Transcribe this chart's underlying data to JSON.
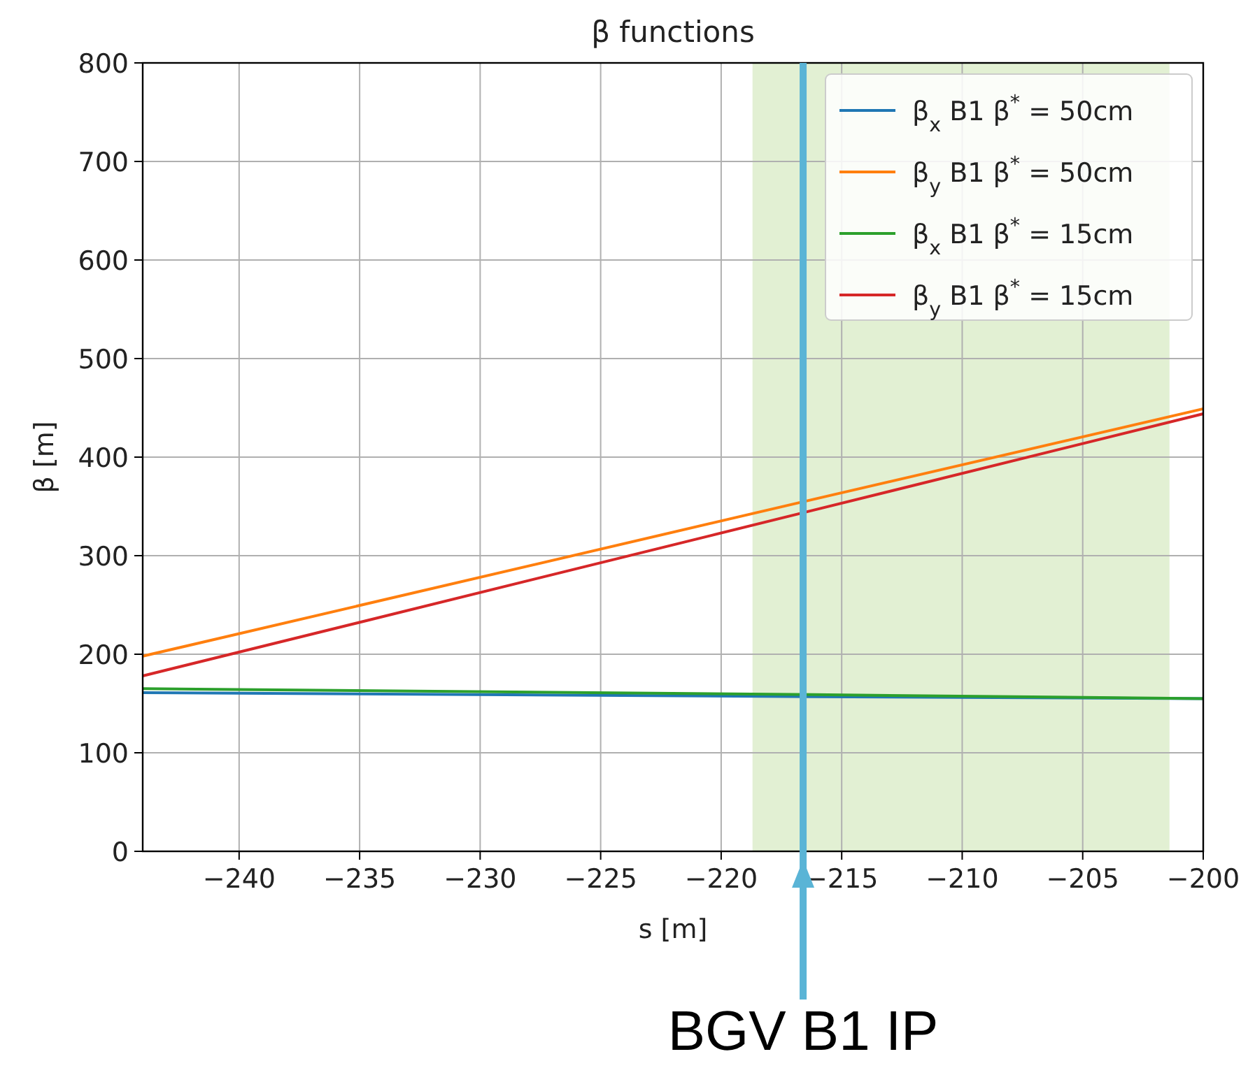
{
  "chart_data": {
    "type": "line",
    "title": "β functions",
    "xlabel": "s [m]",
    "ylabel": "β [m]",
    "xlim": [
      -244,
      -200
    ],
    "xticks": [
      -240,
      -235,
      -230,
      -225,
      -220,
      -215,
      -210,
      -205,
      -200
    ],
    "ylim": [
      0,
      800
    ],
    "yticks": [
      0,
      100,
      200,
      300,
      400,
      500,
      600,
      700,
      800
    ],
    "grid": true,
    "legend": "top right",
    "marker": "none",
    "line_style": "solid",
    "series": [
      {
        "name": "β$_{x}$ B1 β$^{*}$ = 50cm",
        "color": "#1f77b4",
        "x": [
          -244,
          -216.2,
          -200
        ],
        "values": [
          161,
          157,
          155
        ]
      },
      {
        "name": "β$_{y}$ B1 β$^{*}$ = 50cm",
        "color": "#ff7f0e",
        "x": [
          -244,
          -216.2,
          -200
        ],
        "values": [
          198,
          357,
          449
        ]
      },
      {
        "name": "β$_{x}$ B1 β$^{*}$ = 15cm",
        "color": "#2ca02c",
        "x": [
          -244,
          -216.2,
          -200
        ],
        "values": [
          165,
          159,
          155
        ]
      },
      {
        "name": "β$_{y}$ B1 β$^{*}$ = 15cm",
        "color": "#d62728",
        "x": [
          -244,
          -216.2,
          -200
        ],
        "values": [
          178,
          346,
          444
        ]
      }
    ],
    "bands": [
      {
        "axis": "x",
        "from": -218.7,
        "to": -201.4,
        "color": "#e2f0d3"
      }
    ],
    "ref_lines": [
      {
        "axis": "x",
        "value": -216.6,
        "label": "BGV B1 IP",
        "color": "#5ab4d6"
      }
    ]
  }
}
